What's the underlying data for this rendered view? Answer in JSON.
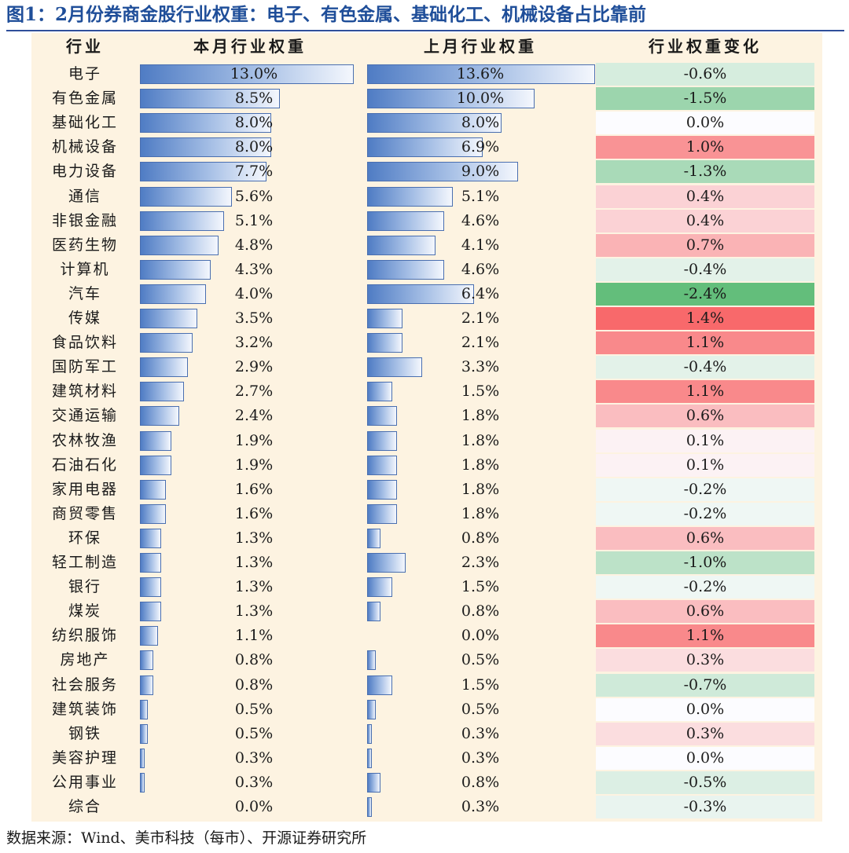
{
  "title": "图1：2月份券商金股行业权重：电子、有色金属、基础化工、机械设备占比靠前",
  "source": "数据来源：Wind、美市科技（每市）、开源证券研究所",
  "colors": {
    "bar_dark": "#4f7cc4",
    "bar_light": "#f4f7fd",
    "panel_bg": "#fdf3e1",
    "title": "#1f4e99",
    "positive_max": "#f8696b",
    "negative_max": "#63be7b"
  },
  "chart_data": {
    "type": "table",
    "columns": [
      "行业",
      "本月行业权重",
      "上月行业权重",
      "行业权重变化"
    ],
    "rows": [
      {
        "industry": "电子",
        "current": "13.0%",
        "previous": "13.6%",
        "change": "-0.6%",
        "current_value": 13.0,
        "previous_value": 13.6,
        "change_value": -0.6
      },
      {
        "industry": "有色金属",
        "current": "8.5%",
        "previous": "10.0%",
        "change": "-1.5%",
        "current_value": 8.5,
        "previous_value": 10.0,
        "change_value": -1.5
      },
      {
        "industry": "基础化工",
        "current": "8.0%",
        "previous": "8.0%",
        "change": "0.0%",
        "current_value": 8.0,
        "previous_value": 8.0,
        "change_value": 0.0
      },
      {
        "industry": "机械设备",
        "current": "8.0%",
        "previous": "6.9%",
        "change": "1.0%",
        "current_value": 8.0,
        "previous_value": 6.9,
        "change_value": 1.0
      },
      {
        "industry": "电力设备",
        "current": "7.7%",
        "previous": "9.0%",
        "change": "-1.3%",
        "current_value": 7.7,
        "previous_value": 9.0,
        "change_value": -1.3
      },
      {
        "industry": "通信",
        "current": "5.6%",
        "previous": "5.1%",
        "change": "0.4%",
        "current_value": 5.6,
        "previous_value": 5.1,
        "change_value": 0.4
      },
      {
        "industry": "非银金融",
        "current": "5.1%",
        "previous": "4.6%",
        "change": "0.4%",
        "current_value": 5.1,
        "previous_value": 4.6,
        "change_value": 0.4
      },
      {
        "industry": "医药生物",
        "current": "4.8%",
        "previous": "4.1%",
        "change": "0.7%",
        "current_value": 4.8,
        "previous_value": 4.1,
        "change_value": 0.7
      },
      {
        "industry": "计算机",
        "current": "4.3%",
        "previous": "4.6%",
        "change": "-0.4%",
        "current_value": 4.3,
        "previous_value": 4.6,
        "change_value": -0.4
      },
      {
        "industry": "汽车",
        "current": "4.0%",
        "previous": "6.4%",
        "change": "-2.4%",
        "current_value": 4.0,
        "previous_value": 6.4,
        "change_value": -2.4
      },
      {
        "industry": "传媒",
        "current": "3.5%",
        "previous": "2.1%",
        "change": "1.4%",
        "current_value": 3.5,
        "previous_value": 2.1,
        "change_value": 1.4
      },
      {
        "industry": "食品饮料",
        "current": "3.2%",
        "previous": "2.1%",
        "change": "1.1%",
        "current_value": 3.2,
        "previous_value": 2.1,
        "change_value": 1.1
      },
      {
        "industry": "国防军工",
        "current": "2.9%",
        "previous": "3.3%",
        "change": "-0.4%",
        "current_value": 2.9,
        "previous_value": 3.3,
        "change_value": -0.4
      },
      {
        "industry": "建筑材料",
        "current": "2.7%",
        "previous": "1.5%",
        "change": "1.1%",
        "current_value": 2.7,
        "previous_value": 1.5,
        "change_value": 1.1
      },
      {
        "industry": "交通运输",
        "current": "2.4%",
        "previous": "1.8%",
        "change": "0.6%",
        "current_value": 2.4,
        "previous_value": 1.8,
        "change_value": 0.6
      },
      {
        "industry": "农林牧渔",
        "current": "1.9%",
        "previous": "1.8%",
        "change": "0.1%",
        "current_value": 1.9,
        "previous_value": 1.8,
        "change_value": 0.1
      },
      {
        "industry": "石油石化",
        "current": "1.9%",
        "previous": "1.8%",
        "change": "0.1%",
        "current_value": 1.9,
        "previous_value": 1.8,
        "change_value": 0.1
      },
      {
        "industry": "家用电器",
        "current": "1.6%",
        "previous": "1.8%",
        "change": "-0.2%",
        "current_value": 1.6,
        "previous_value": 1.8,
        "change_value": -0.2
      },
      {
        "industry": "商贸零售",
        "current": "1.6%",
        "previous": "1.8%",
        "change": "-0.2%",
        "current_value": 1.6,
        "previous_value": 1.8,
        "change_value": -0.2
      },
      {
        "industry": "环保",
        "current": "1.3%",
        "previous": "0.8%",
        "change": "0.6%",
        "current_value": 1.3,
        "previous_value": 0.8,
        "change_value": 0.6
      },
      {
        "industry": "轻工制造",
        "current": "1.3%",
        "previous": "2.3%",
        "change": "-1.0%",
        "current_value": 1.3,
        "previous_value": 2.3,
        "change_value": -1.0
      },
      {
        "industry": "银行",
        "current": "1.3%",
        "previous": "1.5%",
        "change": "-0.2%",
        "current_value": 1.3,
        "previous_value": 1.5,
        "change_value": -0.2
      },
      {
        "industry": "煤炭",
        "current": "1.3%",
        "previous": "0.8%",
        "change": "0.6%",
        "current_value": 1.3,
        "previous_value": 0.8,
        "change_value": 0.6
      },
      {
        "industry": "纺织服饰",
        "current": "1.1%",
        "previous": "0.0%",
        "change": "1.1%",
        "current_value": 1.1,
        "previous_value": 0.0,
        "change_value": 1.1
      },
      {
        "industry": "房地产",
        "current": "0.8%",
        "previous": "0.5%",
        "change": "0.3%",
        "current_value": 0.8,
        "previous_value": 0.5,
        "change_value": 0.3
      },
      {
        "industry": "社会服务",
        "current": "0.8%",
        "previous": "1.5%",
        "change": "-0.7%",
        "current_value": 0.8,
        "previous_value": 1.5,
        "change_value": -0.7
      },
      {
        "industry": "建筑装饰",
        "current": "0.5%",
        "previous": "0.5%",
        "change": "0.0%",
        "current_value": 0.5,
        "previous_value": 0.5,
        "change_value": 0.0
      },
      {
        "industry": "钢铁",
        "current": "0.5%",
        "previous": "0.3%",
        "change": "0.3%",
        "current_value": 0.5,
        "previous_value": 0.3,
        "change_value": 0.3
      },
      {
        "industry": "美容护理",
        "current": "0.3%",
        "previous": "0.3%",
        "change": "0.0%",
        "current_value": 0.3,
        "previous_value": 0.3,
        "change_value": 0.0
      },
      {
        "industry": "公用事业",
        "current": "0.3%",
        "previous": "0.8%",
        "change": "-0.5%",
        "current_value": 0.3,
        "previous_value": 0.8,
        "change_value": -0.5
      },
      {
        "industry": "综合",
        "current": "0.0%",
        "previous": "0.3%",
        "change": "-0.3%",
        "current_value": 0.0,
        "previous_value": 0.3,
        "change_value": -0.3
      }
    ]
  }
}
